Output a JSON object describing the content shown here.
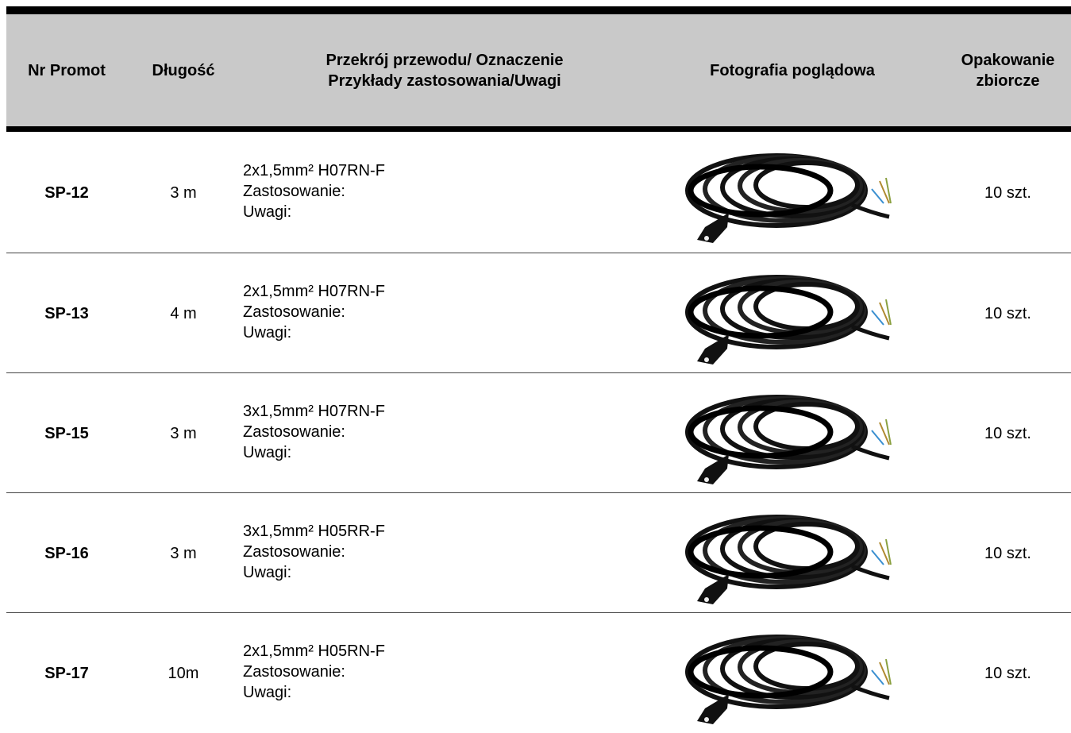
{
  "table": {
    "headers": [
      [
        "Nr Promot"
      ],
      [
        "Długość"
      ],
      [
        "Przekrój przewodu/ Oznaczenie",
        "Przykłady zastosowania/Uwagi"
      ],
      [
        "Fotografia poglądowa"
      ],
      [
        "Opakowanie",
        "zbiorcze"
      ]
    ],
    "rows": [
      {
        "id": "SP-12",
        "length": "3 m",
        "desc": [
          "2x1,5mm² H07RN-F",
          "Zastosowanie:",
          "Uwagi:"
        ],
        "pack": "10 szt."
      },
      {
        "id": "SP-13",
        "length": "4 m",
        "desc": [
          "2x1,5mm² H07RN-F",
          "Zastosowanie:",
          "Uwagi:"
        ],
        "pack": "10 szt."
      },
      {
        "id": "SP-15",
        "length": "3 m",
        "desc": [
          "3x1,5mm² H07RN-F",
          "Zastosowanie:",
          "Uwagi:"
        ],
        "pack": "10 szt."
      },
      {
        "id": "SP-16",
        "length": "3 m",
        "desc": [
          "3x1,5mm² H05RR-F",
          "Zastosowanie:",
          "Uwagi:"
        ],
        "pack": "10 szt."
      },
      {
        "id": "SP-17",
        "length": "10m",
        "desc": [
          "2x1,5mm² H05RN-F",
          "Zastosowanie:",
          "Uwagi:"
        ],
        "pack": "10 szt."
      }
    ]
  }
}
